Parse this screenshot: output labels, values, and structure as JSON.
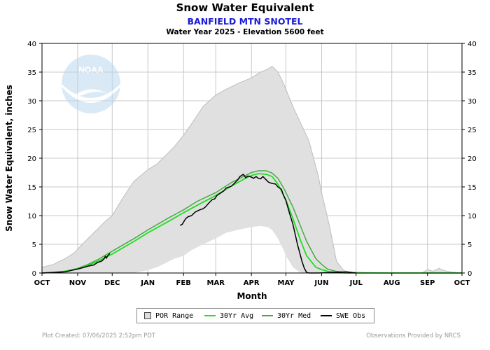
{
  "header": {
    "title": "Snow Water Equivalent",
    "station": "BANFIELD MTN SNOTEL",
    "subtitle": "Water Year 2025 -  Elevation 5600 feet"
  },
  "logo": {
    "text": "NOAA"
  },
  "legend": {
    "por_label": "POR Range",
    "avg_label": "30Yr Avg",
    "med_label": "30Yr Med",
    "obs_label": "SWE Obs"
  },
  "footer": {
    "created": "Plot Created: 07/06/2025 2:52pm PDT",
    "provider": "Observations Provided by NRCS"
  },
  "colors": {
    "por_fill": "#e0e0e0",
    "por_edge": "#bdbdbd",
    "avg": "#1ee01e",
    "med": "#4aa84a",
    "obs": "#000000",
    "grid": "#c8c8c8"
  },
  "chart_data": {
    "type": "area",
    "xlabel": "Month",
    "ylabel": "Snow Water Equivalent, inches",
    "ylim": [
      0,
      40
    ],
    "yticks": [
      0,
      5,
      10,
      15,
      20,
      25,
      30,
      35,
      40
    ],
    "months": [
      "OCT",
      "NOV",
      "DEC",
      "JAN",
      "FEB",
      "MAR",
      "APR",
      "MAY",
      "JUN",
      "JUL",
      "AUG",
      "SEP",
      "OCT"
    ],
    "month_start_days": [
      0,
      31,
      61,
      92,
      123,
      151,
      182,
      212,
      243,
      273,
      304,
      335,
      365
    ],
    "grid": true,
    "series": [
      {
        "name": "POR Range",
        "kind": "band",
        "x": [
          0,
          10,
          20,
          28,
          35,
          45,
          55,
          61,
          70,
          80,
          92,
          100,
          110,
          115,
          123,
          130,
          140,
          151,
          160,
          170,
          182,
          190,
          196,
          200,
          205,
          210,
          212,
          218,
          225,
          232,
          240,
          243,
          250,
          256,
          262,
          265,
          273,
          300,
          330,
          335,
          340,
          345,
          350,
          355,
          365
        ],
        "upper": [
          1,
          1.5,
          2.5,
          3.5,
          5,
          7,
          9,
          10,
          13,
          16,
          18,
          19,
          21,
          22,
          24,
          26,
          29,
          31,
          32,
          33,
          34,
          35,
          35.5,
          36,
          35,
          33,
          32,
          29,
          26,
          23,
          17,
          14,
          8,
          2,
          0.5,
          0.2,
          0,
          0,
          0,
          0.6,
          0.3,
          0.8,
          0.4,
          0.2,
          0
        ],
        "lower": [
          0,
          0,
          0,
          0,
          0,
          0,
          0,
          0,
          0,
          0,
          0.5,
          1,
          2,
          2.5,
          3,
          4,
          5,
          6,
          7,
          7.5,
          8,
          8.2,
          8,
          7.5,
          6,
          4,
          3,
          1,
          0,
          0,
          0,
          0,
          0,
          0,
          0,
          0,
          0,
          0,
          0,
          0,
          0,
          0,
          0,
          0,
          0
        ]
      },
      {
        "name": "30Yr Avg",
        "x": [
          0,
          10,
          20,
          31,
          40,
          50,
          61,
          80,
          92,
          110,
          123,
          135,
          151,
          165,
          175,
          182,
          188,
          195,
          200,
          205,
          210,
          212,
          218,
          225,
          230,
          238,
          243,
          248,
          255,
          265,
          300,
          365
        ],
        "values": [
          0,
          0.1,
          0.3,
          0.7,
          1.3,
          2.2,
          3.3,
          5.5,
          7,
          9,
          10.5,
          11.8,
          13.5,
          15.2,
          16.3,
          17,
          17.3,
          17.2,
          16.8,
          15.5,
          13.5,
          12.7,
          9.5,
          5.5,
          3,
          1,
          0.6,
          0.3,
          0.1,
          0,
          0,
          0
        ]
      },
      {
        "name": "30Yr Med",
        "x": [
          0,
          10,
          20,
          31,
          40,
          50,
          61,
          80,
          92,
          110,
          123,
          135,
          151,
          165,
          175,
          182,
          188,
          195,
          200,
          205,
          210,
          212,
          218,
          225,
          230,
          238,
          243,
          248,
          255,
          265,
          300,
          365
        ],
        "values": [
          0,
          0.1,
          0.3,
          0.8,
          1.5,
          2.5,
          3.8,
          6,
          7.5,
          9.6,
          11,
          12.5,
          14,
          15.8,
          16.8,
          17.5,
          17.8,
          17.8,
          17.4,
          16.5,
          14.8,
          14,
          11.5,
          8,
          5.5,
          2.5,
          1.5,
          0.7,
          0.3,
          0.1,
          0,
          0
        ]
      },
      {
        "name": "SWE Obs",
        "x": [
          0,
          20,
          31,
          35,
          40,
          45,
          48,
          52,
          54,
          55,
          56,
          57,
          59,
          120,
          122,
          124,
          125,
          127,
          130,
          133,
          135,
          137,
          140,
          142,
          145,
          148,
          150,
          152,
          155,
          158,
          160,
          163,
          165,
          167,
          170,
          172,
          175,
          177,
          179,
          182,
          184,
          186,
          188,
          190,
          192,
          195,
          197,
          200,
          203,
          205,
          208,
          210,
          212,
          215,
          218,
          220,
          222,
          224,
          226,
          228,
          230,
          232,
          240,
          265,
          273
        ],
        "values": [
          0,
          0.2,
          0.7,
          0.9,
          1.2,
          1.4,
          1.8,
          2.1,
          2.5,
          2.9,
          2.6,
          3,
          3.4,
          8.3,
          8.5,
          9.2,
          9.5,
          9.8,
          10,
          10.6,
          10.8,
          11,
          11.2,
          11.5,
          12.2,
          12.8,
          12.9,
          13.5,
          13.9,
          14.3,
          14.8,
          15,
          15.2,
          15.6,
          16.2,
          16.8,
          17.2,
          16.6,
          16.9,
          16.7,
          16.5,
          16.8,
          16.5,
          16.4,
          16.8,
          16.2,
          15.8,
          15.6,
          15.5,
          15,
          14.6,
          13.5,
          12.6,
          10.5,
          8.5,
          6.8,
          5,
          3.5,
          2,
          0.8,
          0.1,
          0,
          0,
          0.2,
          0
        ]
      }
    ]
  }
}
